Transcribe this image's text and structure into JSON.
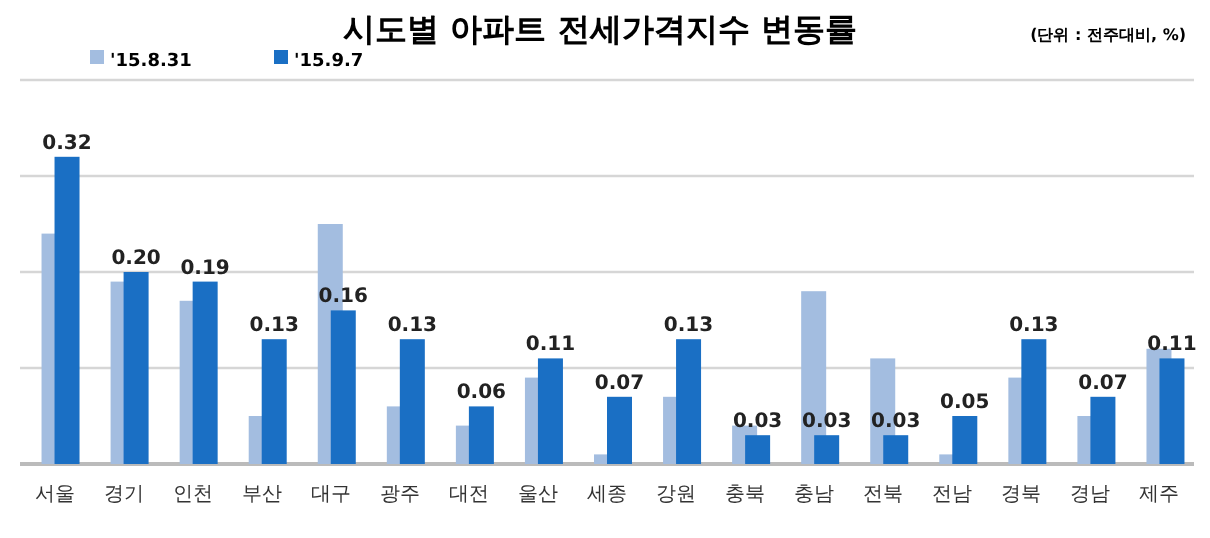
{
  "chart_data": {
    "type": "bar",
    "title": "시도별 아파트 전세가격지수 변동률",
    "annotations": [
      "(단위 : 전주대비, %)"
    ],
    "categories": [
      "서울",
      "경기",
      "인천",
      "부산",
      "대구",
      "광주",
      "대전",
      "울산",
      "세종",
      "강원",
      "충북",
      "충남",
      "전북",
      "전남",
      "경북",
      "경남",
      "제주"
    ],
    "series": [
      {
        "name": "'15.8.31",
        "color": "#a3bde0",
        "values": [
          0.24,
          0.19,
          0.17,
          0.05,
          0.25,
          0.06,
          0.04,
          0.09,
          0.01,
          0.07,
          0.04,
          0.18,
          0.11,
          0.01,
          0.09,
          0.05,
          0.12
        ]
      },
      {
        "name": "'15.9.7",
        "color": "#1a6fc4",
        "values": [
          0.32,
          0.2,
          0.19,
          0.13,
          0.16,
          0.13,
          0.06,
          0.11,
          0.07,
          0.13,
          0.03,
          0.03,
          0.03,
          0.05,
          0.13,
          0.07,
          0.11
        ],
        "value_labels": [
          "0.32",
          "0.20",
          "0.19",
          "0.13",
          "0.16",
          "0.13",
          "0.06",
          "0.11",
          "0.07",
          "0.13",
          "0.03",
          "0.03",
          "0.03",
          "0.05",
          "0.13",
          "0.07",
          "0.11"
        ]
      }
    ],
    "ylim": [
      0,
      0.4
    ],
    "yticks": [
      {
        "value": 0,
        "label": null
      },
      {
        "value": 0.1,
        "label": null
      },
      {
        "value": 0.2,
        "label": null
      },
      {
        "value": 0.3,
        "label": null
      },
      {
        "value": 0.4,
        "label": null
      }
    ],
    "grid": "y",
    "legend": "top left",
    "tick_labels": "x"
  }
}
